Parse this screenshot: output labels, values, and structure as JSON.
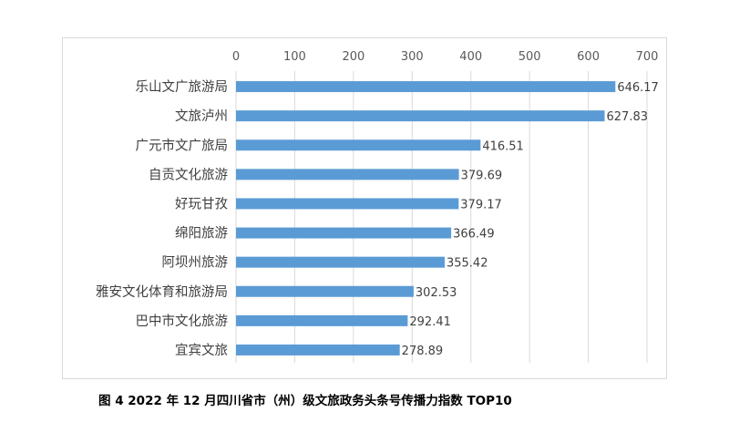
{
  "caption": "图 4  2022 年 12 月四川省市（州）级文旅政务头条号传播力指数 TOP10",
  "chart_data": {
    "type": "bar",
    "orientation": "horizontal",
    "title": "",
    "xlabel": "",
    "ylabel": "",
    "xlim": [
      0,
      700
    ],
    "xticks": [
      0,
      100,
      200,
      300,
      400,
      500,
      600,
      700
    ],
    "x_axis_position": "top",
    "grid": true,
    "legend": "none",
    "bar_color": "#5b9bd5",
    "categories": [
      "乐山文广旅游局",
      "文旅泸州",
      "广元市文广旅局",
      "自贡文化旅游",
      "好玩甘孜",
      "绵阳旅游",
      "阿坝州旅游",
      "雅安文化体育和旅游局",
      "巴中市文化旅游",
      "宜宾文旅"
    ],
    "values": [
      646.17,
      627.83,
      416.51,
      379.69,
      379.17,
      366.49,
      355.42,
      302.53,
      292.41,
      278.89
    ],
    "value_labels": [
      "646.17",
      "627.83",
      "416.51",
      "379.69",
      "379.17",
      "366.49",
      "355.42",
      "302.53",
      "292.41",
      "278.89"
    ]
  }
}
